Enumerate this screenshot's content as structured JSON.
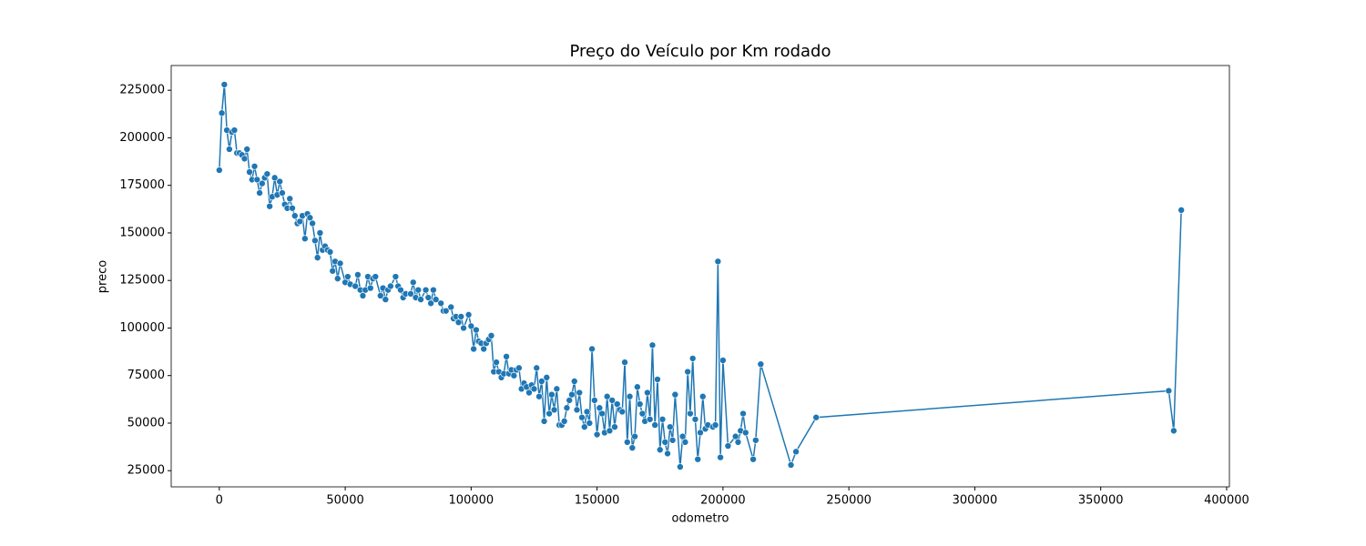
{
  "chart_data": {
    "type": "line",
    "title": "Preço do Veículo por Km rodado",
    "x_label": "odometro",
    "y_label": "preco",
    "color": "#1f77b4",
    "x": [
      0,
      1000,
      2000,
      3000,
      4000,
      5000,
      6000,
      7000,
      8000,
      9000,
      10000,
      11000,
      12000,
      13000,
      14000,
      15000,
      16000,
      17000,
      18000,
      19000,
      20000,
      21000,
      22000,
      23000,
      24000,
      25000,
      26000,
      27000,
      28000,
      29000,
      30000,
      31000,
      32000,
      33000,
      34000,
      35000,
      36000,
      37000,
      38000,
      39000,
      40000,
      41000,
      42000,
      43000,
      44000,
      45000,
      46000,
      47000,
      48000,
      50000,
      51000,
      52000,
      54000,
      55000,
      56000,
      57000,
      58000,
      59000,
      60000,
      61000,
      62000,
      64000,
      65000,
      66000,
      67000,
      68000,
      70000,
      71000,
      72000,
      73000,
      74000,
      76000,
      77000,
      78000,
      79000,
      80000,
      82000,
      83000,
      84000,
      85000,
      86000,
      88000,
      89000,
      90000,
      92000,
      93000,
      94000,
      95000,
      96000,
      97000,
      99000,
      100000,
      101000,
      102000,
      103000,
      104000,
      105000,
      106000,
      107000,
      108000,
      109000,
      110000,
      111000,
      112000,
      113000,
      114000,
      115000,
      116000,
      117000,
      118000,
      119000,
      120000,
      121000,
      122000,
      123000,
      124000,
      125000,
      126000,
      127000,
      128000,
      129000,
      130000,
      131000,
      132000,
      133000,
      134000,
      135000,
      136000,
      137000,
      138000,
      139000,
      140000,
      141000,
      142000,
      143000,
      144000,
      145000,
      146000,
      147000,
      148000,
      149000,
      150000,
      151000,
      152000,
      153000,
      154000,
      155000,
      156000,
      157000,
      158000,
      159000,
      160000,
      161000,
      162000,
      163000,
      164000,
      165000,
      166000,
      167000,
      168000,
      169000,
      170000,
      171000,
      172000,
      173000,
      174000,
      175000,
      176000,
      177000,
      178000,
      179000,
      180000,
      181000,
      183000,
      184000,
      185000,
      186000,
      187000,
      188000,
      189000,
      190000,
      191000,
      192000,
      193000,
      194000,
      196000,
      197000,
      198000,
      199000,
      200000,
      202000,
      205000,
      206000,
      207000,
      208000,
      209000,
      212000,
      213000,
      215000,
      227000,
      229000,
      237000,
      377000,
      379000,
      382000
    ],
    "values": [
      183000,
      213000,
      228000,
      204000,
      194000,
      203000,
      204000,
      192000,
      192000,
      191000,
      189000,
      194000,
      182000,
      178000,
      185000,
      178000,
      171000,
      176000,
      179000,
      181000,
      164000,
      169000,
      179000,
      170000,
      177000,
      171000,
      165000,
      163000,
      168000,
      163000,
      159000,
      155000,
      156000,
      159000,
      147000,
      160000,
      158000,
      155000,
      146000,
      137000,
      150000,
      141000,
      143000,
      141000,
      140000,
      130000,
      135000,
      126000,
      134000,
      124000,
      127000,
      123000,
      122000,
      128000,
      120000,
      117000,
      120000,
      127000,
      121000,
      126000,
      127000,
      117000,
      121000,
      115000,
      120000,
      122000,
      127000,
      122000,
      120000,
      116000,
      118000,
      118000,
      124000,
      116000,
      120000,
      115000,
      120000,
      116000,
      113000,
      120000,
      115000,
      113000,
      109000,
      109000,
      111000,
      105000,
      106000,
      103000,
      106000,
      100000,
      107000,
      101000,
      89000,
      99000,
      93000,
      92000,
      89000,
      92000,
      94000,
      96000,
      77000,
      82000,
      77000,
      74000,
      76000,
      85000,
      76000,
      78000,
      75000,
      78000,
      79000,
      68000,
      71000,
      69000,
      66000,
      70000,
      68000,
      79000,
      64000,
      72000,
      51000,
      74000,
      55000,
      65000,
      57000,
      68000,
      49000,
      49000,
      51000,
      58000,
      62000,
      65000,
      72000,
      57000,
      66000,
      53000,
      48000,
      56000,
      50000,
      89000,
      62000,
      44000,
      58000,
      55000,
      45000,
      64000,
      46000,
      62000,
      48000,
      60000,
      57000,
      56000,
      82000,
      40000,
      64000,
      37000,
      43000,
      69000,
      60000,
      55000,
      51000,
      66000,
      52000,
      91000,
      49000,
      73000,
      36000,
      52000,
      40000,
      34000,
      48000,
      41000,
      65000,
      27000,
      43000,
      40000,
      77000,
      55000,
      84000,
      52000,
      31000,
      45000,
      64000,
      47000,
      49000,
      48000,
      49000,
      135000,
      32000,
      83000,
      38000,
      43000,
      40000,
      46000,
      55000,
      45000,
      31000,
      41000,
      81000,
      28000,
      35000,
      53000,
      67000,
      46000,
      162000
    ],
    "xlim": [
      -19100,
      401100
    ],
    "ylim": [
      16500,
      238000
    ],
    "xticks": [
      0,
      50000,
      100000,
      150000,
      200000,
      250000,
      300000,
      350000,
      400000
    ],
    "yticks": [
      25000,
      50000,
      75000,
      100000,
      125000,
      150000,
      175000,
      200000,
      225000
    ]
  }
}
